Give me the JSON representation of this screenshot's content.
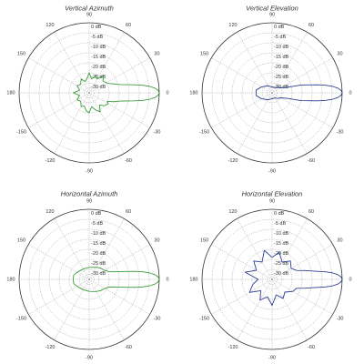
{
  "colors": {
    "green": "#3a9a3a",
    "blue": "#2c3f8f"
  },
  "chart_data": [
    {
      "type": "polar-line",
      "title": "Vertical Azimuth",
      "color": "#3a9a3a",
      "angle_ticks": [
        "0",
        "30",
        "60",
        "90",
        "120",
        "150",
        "180",
        "-150",
        "-120",
        "-90",
        "-60",
        "-30"
      ],
      "r_ticks": [
        "0 dB",
        "-5 dB",
        "-10 dB",
        "-15 dB",
        "-20 dB",
        "-25 dB",
        "-30 dB"
      ],
      "rlim": [
        -35,
        0
      ],
      "grid": true,
      "series": [
        {
          "theta": [
            0,
            2,
            4,
            6,
            8,
            10,
            15,
            20,
            25,
            30,
            40,
            50,
            60,
            70,
            80,
            90,
            100,
            110,
            120,
            135,
            150,
            165,
            180,
            195,
            210,
            225,
            240,
            250,
            260,
            270,
            280,
            290,
            300,
            310,
            320,
            330,
            335,
            340,
            345,
            350,
            352,
            354,
            356,
            358,
            360
          ],
          "r": [
            0,
            -0.5,
            -2,
            -4.5,
            -8,
            -12,
            -19,
            -22,
            -24,
            -25,
            -26,
            -24,
            -27,
            -26,
            -28,
            -25,
            -28,
            -29,
            -27,
            -29,
            -28,
            -30,
            -27,
            -30,
            -28,
            -29,
            -27,
            -28,
            -26,
            -25,
            -28,
            -26,
            -24,
            -27,
            -25,
            -24,
            -25,
            -22,
            -19,
            -12,
            -8,
            -4.5,
            -2,
            -0.5,
            0
          ]
        }
      ]
    },
    {
      "type": "polar-line",
      "title": "Vertical Elevation",
      "color": "#2c3f8f",
      "angle_ticks": [
        "0",
        "30",
        "60",
        "90",
        "120",
        "150",
        "180",
        "-150",
        "-120",
        "-90",
        "-60",
        "-30"
      ],
      "r_ticks": [
        "0 dB",
        "-5 dB",
        "-10 dB",
        "-15 dB",
        "-20 dB",
        "-25 dB",
        "-30 dB"
      ],
      "rlim": [
        -35,
        0
      ],
      "grid": true,
      "series": [
        {
          "theta": [
            0,
            2,
            4,
            6,
            8,
            10,
            15,
            20,
            30,
            45,
            60,
            90,
            120,
            150,
            170,
            180,
            190,
            210,
            240,
            270,
            300,
            315,
            330,
            340,
            345,
            350,
            352,
            354,
            356,
            358,
            360
          ],
          "r": [
            0,
            -0.5,
            -2,
            -4.5,
            -8,
            -12,
            -20,
            -27,
            -30,
            -31,
            -32,
            -32,
            -31,
            -29,
            -27,
            -27,
            -27,
            -29,
            -31,
            -32,
            -32,
            -31,
            -30,
            -27,
            -20,
            -12,
            -8,
            -4.5,
            -2,
            -0.5,
            0
          ]
        }
      ]
    },
    {
      "type": "polar-line",
      "title": "Horizontal Azimuth",
      "color": "#3a9a3a",
      "angle_ticks": [
        "0",
        "30",
        "60",
        "90",
        "120",
        "150",
        "180",
        "-150",
        "-120",
        "-90",
        "-60",
        "-30"
      ],
      "r_ticks": [
        "0 dB",
        "-5 dB",
        "-10 dB",
        "-15 dB",
        "-20 dB",
        "-25 dB",
        "-30 dB"
      ],
      "rlim": [
        -35,
        0
      ],
      "grid": true,
      "series": [
        {
          "theta": [
            0,
            2,
            4,
            6,
            8,
            10,
            15,
            20,
            30,
            45,
            60,
            90,
            120,
            150,
            165,
            180,
            195,
            210,
            240,
            270,
            300,
            315,
            330,
            340,
            345,
            350,
            352,
            354,
            356,
            358,
            360
          ],
          "r": [
            0,
            -0.5,
            -2,
            -4.5,
            -8,
            -12,
            -20,
            -24,
            -26,
            -27,
            -28,
            -29,
            -29,
            -28,
            -27,
            -27,
            -27,
            -28,
            -29,
            -29,
            -28,
            -27,
            -26,
            -24,
            -20,
            -12,
            -8,
            -4.5,
            -2,
            -0.5,
            0
          ]
        }
      ]
    },
    {
      "type": "polar-line",
      "title": "Horizontal Elevation",
      "color": "#2c3f8f",
      "angle_ticks": [
        "0",
        "30",
        "60",
        "90",
        "120",
        "150",
        "180",
        "-150",
        "-120",
        "-90",
        "-60",
        "-30"
      ],
      "r_ticks": [
        "0 dB",
        "-5 dB",
        "-10 dB",
        "-15 dB",
        "-20 dB",
        "-25 dB",
        "-30 dB"
      ],
      "rlim": [
        -35,
        0
      ],
      "grid": true,
      "series": [
        {
          "theta": [
            0,
            2,
            4,
            6,
            8,
            10,
            15,
            20,
            30,
            45,
            60,
            75,
            90,
            105,
            120,
            135,
            150,
            165,
            180,
            195,
            210,
            225,
            240,
            255,
            270,
            285,
            300,
            315,
            330,
            340,
            345,
            350,
            352,
            354,
            356,
            358,
            360
          ],
          "r": [
            0,
            -0.5,
            -2,
            -4.5,
            -8,
            -12,
            -18,
            -22,
            -24,
            -22,
            -25,
            -21,
            -24,
            -20,
            -25,
            -22,
            -26,
            -21,
            -28,
            -25,
            -22,
            -27,
            -23,
            -26,
            -22,
            -27,
            -24,
            -26,
            -23,
            -22,
            -18,
            -12,
            -8,
            -4.5,
            -2,
            -0.5,
            0
          ]
        }
      ]
    }
  ]
}
